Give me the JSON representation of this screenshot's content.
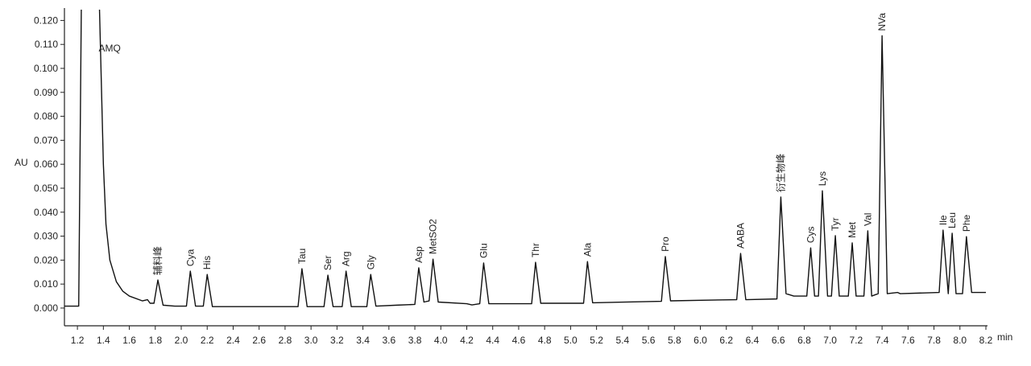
{
  "chart_data": {
    "type": "line",
    "x_label": "min",
    "y_label": "AU",
    "xlim": [
      1.1,
      8.2
    ],
    "ylim": [
      -0.0074,
      0.1245
    ],
    "xticks": [
      1.2,
      1.4,
      1.6,
      1.8,
      {
        "value": 2,
        "label": "2.0"
      },
      2.2,
      2.4,
      2.6,
      2.8,
      {
        "value": 3,
        "label": "3.0"
      },
      3.2,
      3.4,
      3.6,
      3.8,
      {
        "value": 4,
        "label": "4.0"
      },
      4.2,
      4.4,
      4.6,
      4.8,
      {
        "value": 5,
        "label": "5.0"
      },
      5.2,
      5.4,
      5.6,
      5.8,
      {
        "value": 6,
        "label": "6.0"
      },
      6.2,
      6.4,
      6.6,
      6.8,
      {
        "value": 7,
        "label": "7.0"
      },
      7.2,
      7.4,
      7.6,
      7.8,
      {
        "value": 8,
        "label": "8.0"
      },
      8.2
    ],
    "yticks": [
      {
        "value": 0,
        "label": "0.000"
      },
      {
        "value": 0.01,
        "label": "0.010"
      },
      {
        "value": 0.02,
        "label": "0.020"
      },
      {
        "value": 0.03,
        "label": "0.030"
      },
      {
        "value": 0.04,
        "label": "0.040"
      },
      {
        "value": 0.05,
        "label": "0.050"
      },
      {
        "value": 0.06,
        "label": "0.060"
      },
      {
        "value": 0.07,
        "label": "0.070"
      },
      {
        "value": 0.08,
        "label": "0.080"
      },
      {
        "value": 0.09,
        "label": "0.090"
      },
      {
        "value": 0.1,
        "label": "0.100"
      },
      {
        "value": 0.11,
        "label": "0.110"
      },
      {
        "value": 0.12,
        "label": "0.120"
      }
    ],
    "x": [
      1.1,
      1.21,
      1.23,
      1.37,
      1.4,
      1.42,
      1.45,
      1.5,
      1.55,
      1.6,
      1.7,
      1.74,
      1.76,
      1.79,
      1.82,
      1.86,
      1.95,
      2.04,
      2.07,
      2.11,
      2.17,
      2.2,
      2.24,
      2.9,
      2.93,
      2.97,
      3.1,
      3.13,
      3.17,
      3.24,
      3.27,
      3.31,
      3.43,
      3.46,
      3.5,
      3.66,
      3.8,
      3.83,
      3.87,
      3.91,
      3.94,
      3.98,
      4.2,
      4.24,
      4.3,
      4.33,
      4.37,
      4.7,
      4.73,
      4.77,
      5.1,
      5.13,
      5.17,
      5.7,
      5.73,
      5.77,
      6.28,
      6.31,
      6.35,
      6.59,
      6.62,
      6.66,
      6.72,
      6.82,
      6.85,
      6.88,
      6.91,
      6.94,
      6.98,
      7.01,
      7.04,
      7.07,
      7.14,
      7.17,
      7.2,
      7.26,
      7.29,
      7.32,
      7.37,
      7.4,
      7.44,
      7.52,
      7.54,
      7.84,
      7.87,
      7.91,
      7.94,
      7.97,
      8.02,
      8.05,
      8.09,
      8.2
    ],
    "series": [
      {
        "color": "#111111",
        "values": [
          0.0008,
          0.0008,
          0.125,
          0.125,
          0.06,
          0.035,
          0.02,
          0.011,
          0.007,
          0.005,
          0.003,
          0.0035,
          0.002,
          0.002,
          0.0117,
          0.0012,
          0.0008,
          0.0008,
          0.0154,
          0.0008,
          0.0008,
          0.014,
          0.0006,
          0.0006,
          0.0164,
          0.0006,
          0.0006,
          0.0137,
          0.0006,
          0.0006,
          0.0154,
          0.0006,
          0.0006,
          0.014,
          0.0008,
          0.0012,
          0.0015,
          0.0168,
          0.0025,
          0.003,
          0.0204,
          0.0025,
          0.0018,
          0.0013,
          0.0018,
          0.0188,
          0.0018,
          0.0018,
          0.0191,
          0.002,
          0.002,
          0.0194,
          0.0022,
          0.0028,
          0.0215,
          0.003,
          0.0035,
          0.0228,
          0.0035,
          0.0038,
          0.0463,
          0.006,
          0.005,
          0.005,
          0.0251,
          0.005,
          0.005,
          0.0489,
          0.005,
          0.005,
          0.0302,
          0.005,
          0.005,
          0.0272,
          0.005,
          0.005,
          0.0322,
          0.005,
          0.006,
          0.1136,
          0.006,
          0.0065,
          0.006,
          0.0065,
          0.0325,
          0.006,
          0.0312,
          0.006,
          0.006,
          0.0298,
          0.0065,
          0.0065
        ]
      }
    ],
    "annotations": [
      {
        "text": "AMQ",
        "x": 1.42,
        "orientation": "horizontal"
      },
      {
        "text": "辅料峰",
        "x": 1.82
      },
      {
        "text": "Cya",
        "x": 2.07
      },
      {
        "text": "His",
        "x": 2.2
      },
      {
        "text": "Tau",
        "x": 2.93
      },
      {
        "text": "Ser",
        "x": 3.13
      },
      {
        "text": "Arg",
        "x": 3.27
      },
      {
        "text": "Gly",
        "x": 3.46
      },
      {
        "text": "Asp",
        "x": 3.83
      },
      {
        "text": "MetSO2",
        "x": 3.94
      },
      {
        "text": "Glu",
        "x": 4.33
      },
      {
        "text": "Thr",
        "x": 4.73
      },
      {
        "text": "Ala",
        "x": 5.13
      },
      {
        "text": "Pro",
        "x": 5.73
      },
      {
        "text": "AABA",
        "x": 6.31
      },
      {
        "text": "衍生物峰",
        "x": 6.62
      },
      {
        "text": "Cys",
        "x": 6.85
      },
      {
        "text": "Lys",
        "x": 6.94
      },
      {
        "text": "Tyr",
        "x": 7.04
      },
      {
        "text": "Met",
        "x": 7.17
      },
      {
        "text": "Val",
        "x": 7.29
      },
      {
        "text": "NVa",
        "x": 7.4
      },
      {
        "text": "Ile",
        "x": 7.87
      },
      {
        "text": "Leu",
        "x": 7.94
      },
      {
        "text": "Phe",
        "x": 8.05
      }
    ]
  }
}
